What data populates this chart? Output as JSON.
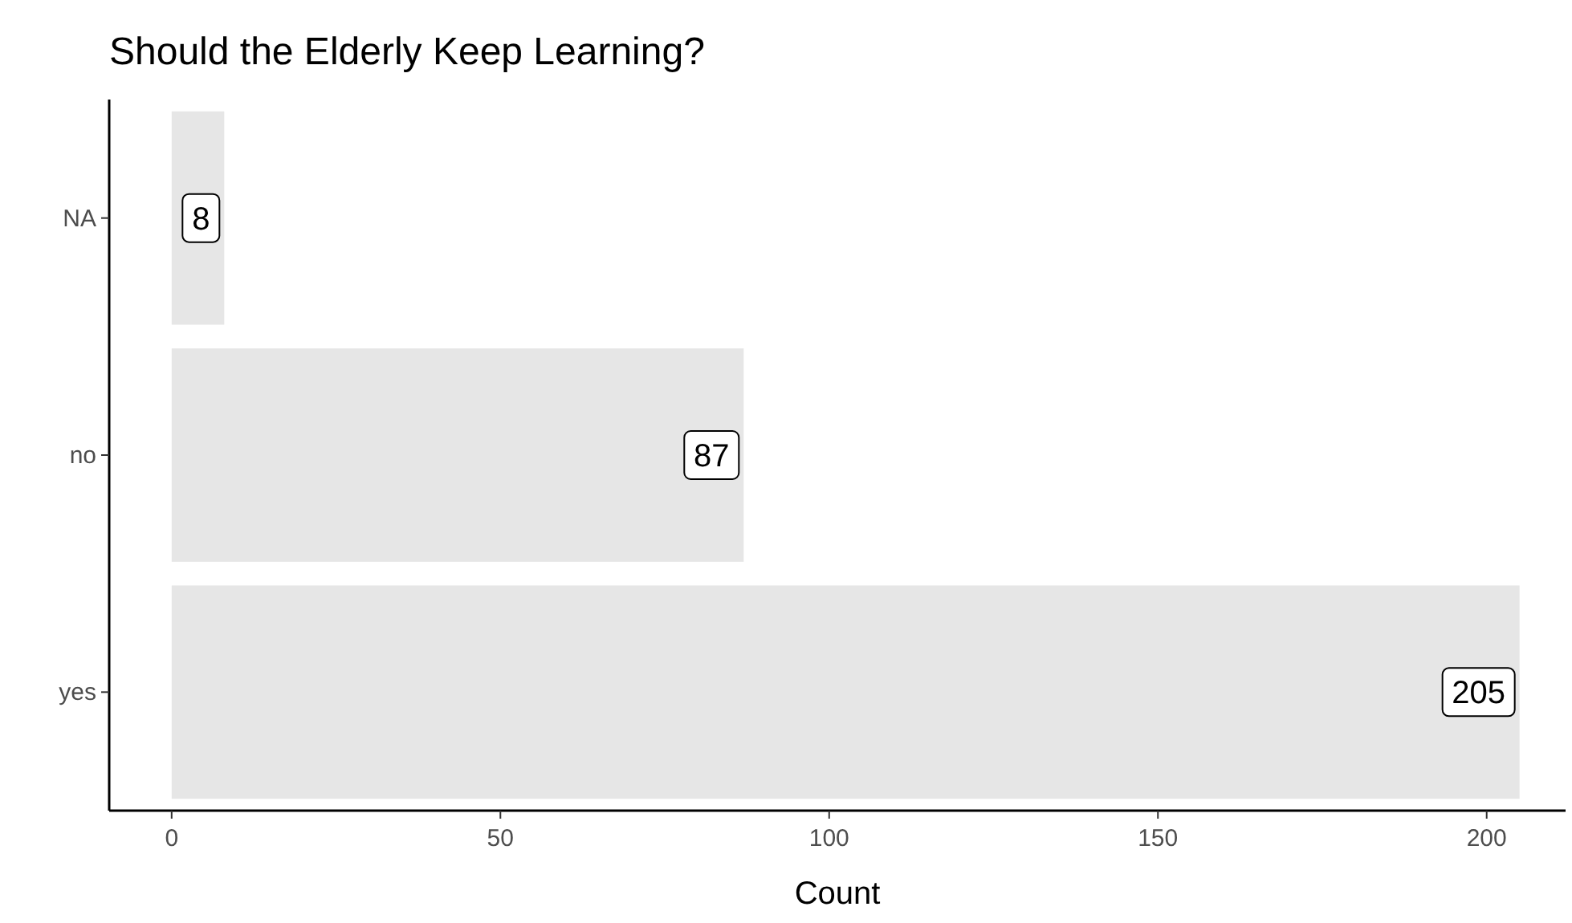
{
  "chart_data": {
    "type": "bar",
    "title": "Should the Elderly Keep Learning?",
    "xlabel": "Count",
    "orientation": "horizontal",
    "categories": [
      "NA",
      "no",
      "yes"
    ],
    "values": [
      8,
      87,
      205
    ],
    "color": "#e6e6e6",
    "xlim": [
      -9.5,
      212
    ],
    "xticks": [
      0,
      50,
      100,
      150,
      200
    ],
    "grid": false,
    "data_labels": true
  }
}
